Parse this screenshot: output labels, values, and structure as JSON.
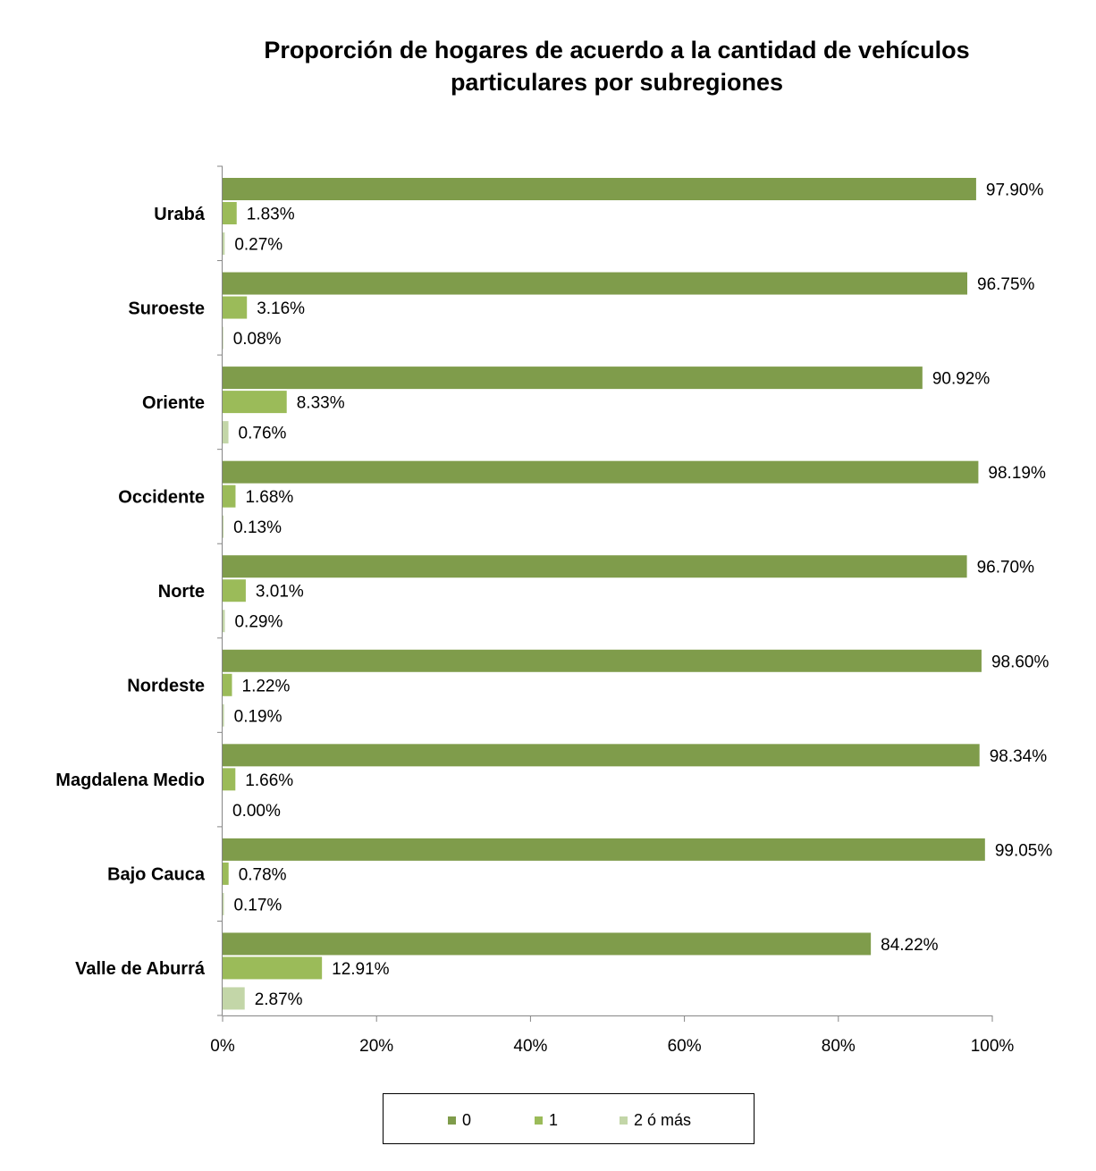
{
  "chart_data": {
    "type": "bar",
    "orientation": "horizontal",
    "title": "Proporción de hogares de acuerdo a la cantidad de vehículos particulares por subregiones",
    "title_lines": [
      "Proporción de hogares de acuerdo a la cantidad de vehículos",
      "particulares por subregiones"
    ],
    "xlabel": "",
    "ylabel": "",
    "xlim": [
      0,
      100
    ],
    "x_ticks": [
      0,
      20,
      40,
      60,
      80,
      100
    ],
    "x_tick_labels": [
      "0%",
      "20%",
      "40%",
      "60%",
      "80%",
      "100%"
    ],
    "grid": false,
    "legend_position": "bottom",
    "categories": [
      "Urabá",
      "Suroeste",
      "Oriente",
      "Occidente",
      "Norte",
      "Nordeste",
      "Magdalena Medio",
      "Bajo Cauca",
      "Valle de Aburrá"
    ],
    "series": [
      {
        "name": "0",
        "color": "#7f9c4b",
        "values": [
          97.9,
          96.75,
          90.92,
          98.19,
          96.7,
          98.6,
          98.34,
          99.05,
          84.22
        ],
        "labels": [
          "97.90%",
          "96.75%",
          "90.92%",
          "98.19%",
          "96.70%",
          "98.60%",
          "98.34%",
          "99.05%",
          "84.22%"
        ]
      },
      {
        "name": "1",
        "color": "#9bbb59",
        "values": [
          1.83,
          3.16,
          8.33,
          1.68,
          3.01,
          1.22,
          1.66,
          0.78,
          12.91
        ],
        "labels": [
          "1.83%",
          "3.16%",
          "8.33%",
          "1.68%",
          "3.01%",
          "1.22%",
          "1.66%",
          "0.78%",
          "12.91%"
        ]
      },
      {
        "name": "2 ó más",
        "color": "#c3d6a8",
        "values": [
          0.27,
          0.08,
          0.76,
          0.13,
          0.29,
          0.19,
          0.0,
          0.17,
          2.87
        ],
        "labels": [
          "0.27%",
          "0.08%",
          "0.76%",
          "0.13%",
          "0.29%",
          "0.19%",
          "0.00%",
          "0.17%",
          "2.87%"
        ]
      }
    ]
  }
}
